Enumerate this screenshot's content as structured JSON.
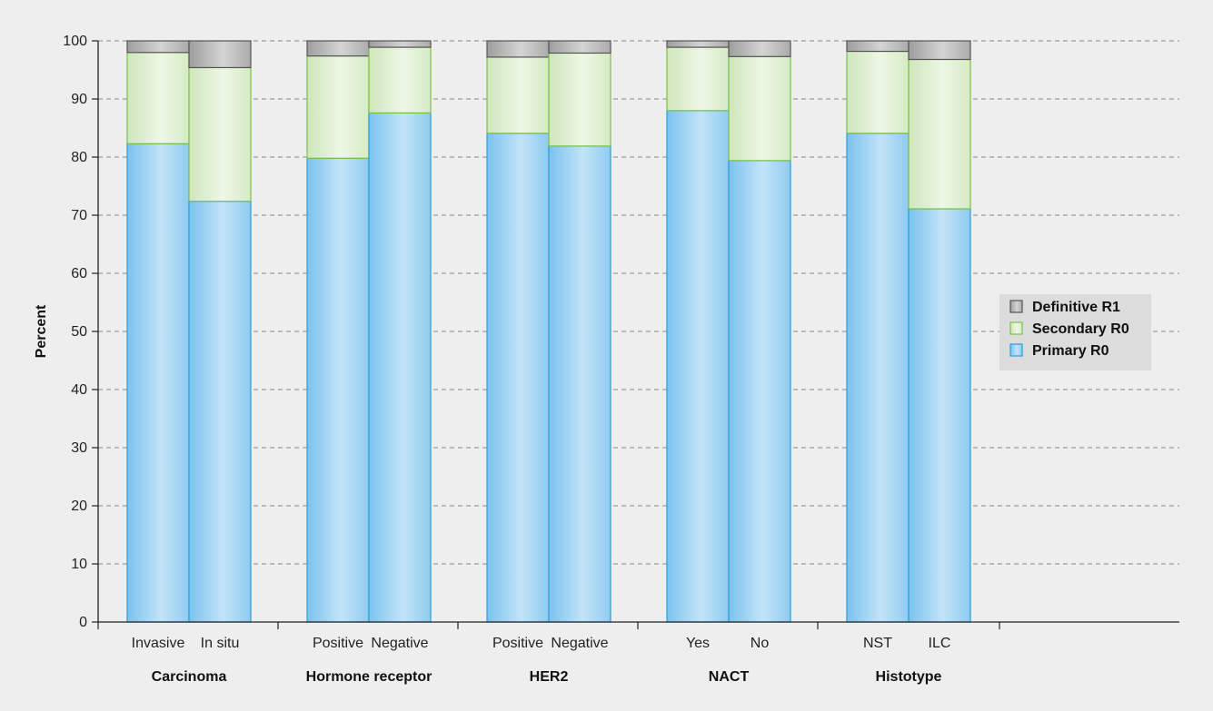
{
  "chart_data": {
    "type": "bar",
    "stacked": true,
    "xlabel": "",
    "ylabel": "Percent",
    "ylim": [
      0,
      100
    ],
    "yticks": [
      0,
      10,
      20,
      30,
      40,
      50,
      60,
      70,
      80,
      90,
      100
    ],
    "grid": "horizontal dashed",
    "legend_position": "right",
    "groups": [
      {
        "name": "Carcinoma",
        "categories": [
          "Invasive",
          "In situ"
        ]
      },
      {
        "name": "Hormone receptor",
        "categories": [
          "Positive",
          "Negative"
        ]
      },
      {
        "name": "HER2",
        "categories": [
          "Positive",
          "Negative"
        ]
      },
      {
        "name": "NACT",
        "categories": [
          "Yes",
          "No"
        ]
      },
      {
        "name": "Histotype",
        "categories": [
          "NST",
          "ILC"
        ]
      }
    ],
    "series": [
      {
        "name": "Primary R0",
        "color": "#8fcbf0",
        "edge": "#2a9fd6",
        "values": [
          82.3,
          72.4,
          79.8,
          87.6,
          84.1,
          81.9,
          88.0,
          79.4,
          84.1,
          71.1
        ]
      },
      {
        "name": "Secondary R0",
        "color": "#d6ebc4",
        "edge": "#7cc04a",
        "values": [
          15.7,
          23.0,
          17.6,
          11.3,
          13.1,
          16.0,
          10.9,
          17.9,
          14.1,
          25.7
        ]
      },
      {
        "name": "Definitive R1",
        "color": "#b4b4b4",
        "edge": "#555555",
        "values": [
          2.0,
          4.6,
          2.6,
          1.1,
          2.8,
          2.1,
          1.1,
          2.7,
          1.8,
          3.2
        ]
      }
    ],
    "legend_order": [
      "Definitive R1",
      "Secondary R0",
      "Primary R0"
    ]
  }
}
